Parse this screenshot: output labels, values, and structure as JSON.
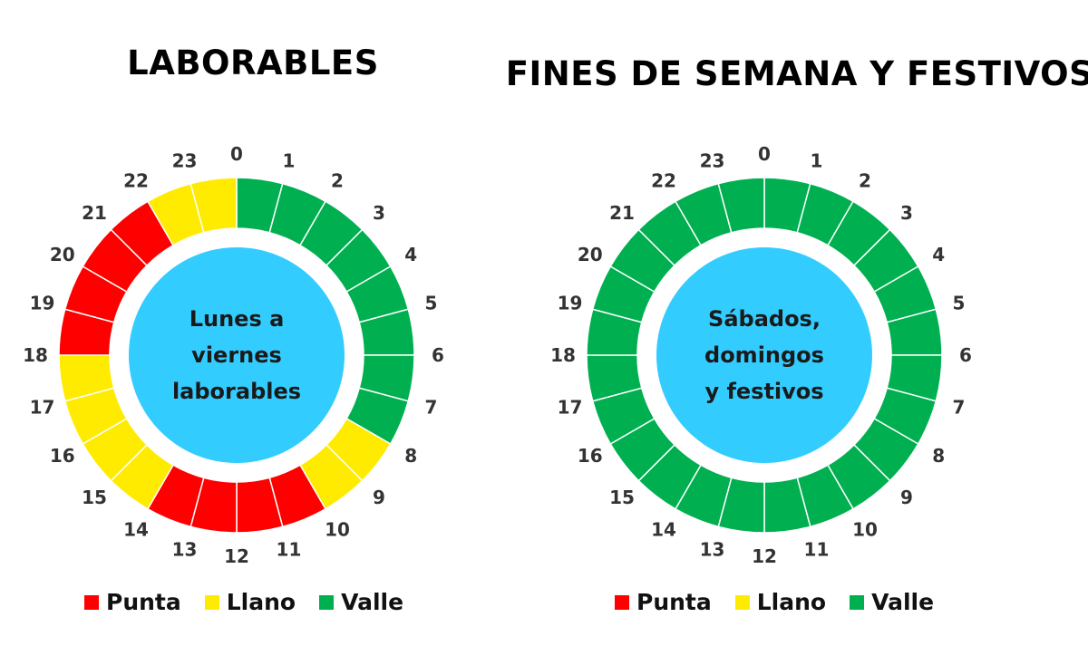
{
  "colors": {
    "punta": "#ff0000",
    "llano": "#ffeb00",
    "valle": "#00b050",
    "center": "#33ccff",
    "inner_ring": "#f2f2f2"
  },
  "legend": [
    {
      "key": "punta",
      "label": "Punta"
    },
    {
      "key": "llano",
      "label": "Llano"
    },
    {
      "key": "valle",
      "label": "Valle"
    }
  ],
  "panels": [
    {
      "title": "LABORABLES",
      "center_lines": [
        "Lunes a",
        "viernes",
        "laborables"
      ],
      "hours": [
        "valle",
        "valle",
        "valle",
        "valle",
        "valle",
        "valle",
        "valle",
        "valle",
        "llano",
        "llano",
        "punta",
        "punta",
        "punta",
        "punta",
        "llano",
        "llano",
        "llano",
        "llano",
        "punta",
        "punta",
        "punta",
        "punta",
        "llano",
        "llano"
      ]
    },
    {
      "title": "FINES DE SEMANA Y FESTIVOS",
      "center_lines": [
        "Sábados,",
        "domingos",
        "y festivos"
      ],
      "hours": [
        "valle",
        "valle",
        "valle",
        "valle",
        "valle",
        "valle",
        "valle",
        "valle",
        "valle",
        "valle",
        "valle",
        "valle",
        "valle",
        "valle",
        "valle",
        "valle",
        "valle",
        "valle",
        "valle",
        "valle",
        "valle",
        "valle",
        "valle",
        "valle"
      ]
    }
  ]
}
